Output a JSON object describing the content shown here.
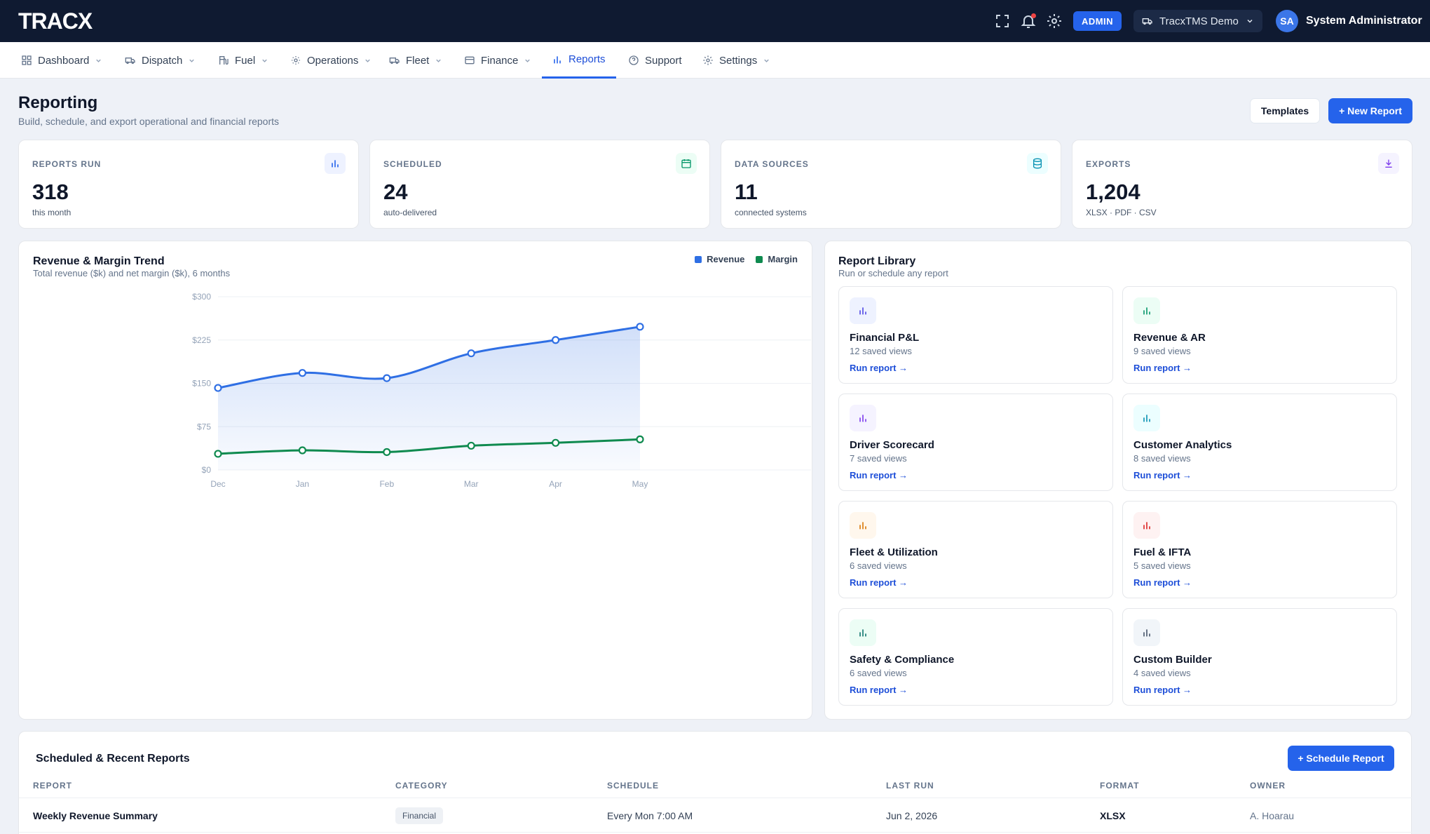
{
  "app": {
    "logo": "TRACX",
    "admin_badge": "ADMIN",
    "tenant": "TracxTMS Demo",
    "user_initials": "SA",
    "user_name": "System Administrator"
  },
  "nav": {
    "items": [
      {
        "label": "Dashboard",
        "icon": "grid-icon",
        "dropdown": true
      },
      {
        "label": "Dispatch",
        "icon": "truck-icon",
        "dropdown": true
      },
      {
        "label": "Fuel",
        "icon": "fuel-pump-icon",
        "dropdown": true
      },
      {
        "label": "Operations",
        "icon": "gear-small-icon",
        "dropdown": true
      },
      {
        "label": "Fleet",
        "icon": "truck-icon",
        "dropdown": true
      },
      {
        "label": "Finance",
        "icon": "credit-card-icon",
        "dropdown": true
      },
      {
        "label": "Reports",
        "icon": "bar-chart-icon",
        "dropdown": false,
        "active": true
      },
      {
        "label": "Support",
        "icon": "help-circle-icon",
        "dropdown": false
      },
      {
        "label": "Settings",
        "icon": "settings-icon",
        "dropdown": true
      }
    ]
  },
  "page": {
    "title": "Reporting",
    "subtitle": "Build, schedule, and export operational and financial reports",
    "templates_label": "Templates",
    "new_report_label": "+ New Report"
  },
  "stats": [
    {
      "label": "REPORTS RUN",
      "value": "318",
      "note": "this month",
      "icon": "bar-chart-icon",
      "color": "#2563eb",
      "bg": "#eef2ff"
    },
    {
      "label": "SCHEDULED",
      "value": "24",
      "note": "auto-delivered",
      "icon": "calendar-icon",
      "color": "#059669",
      "bg": "#ecfdf5"
    },
    {
      "label": "DATA SOURCES",
      "value": "11",
      "note": "connected systems",
      "icon": "database-icon",
      "color": "#0891b2",
      "bg": "#ecfeff"
    },
    {
      "label": "EXPORTS",
      "value": "1,204",
      "note": "XLSX · PDF · CSV",
      "icon": "download-icon",
      "color": "#7c3aed",
      "bg": "#f5f3ff"
    }
  ],
  "chart_panel": {
    "title": "Revenue & Margin Trend",
    "subtitle": "Total revenue ($k) and net margin ($k), 6 months"
  },
  "chart_data": {
    "type": "area",
    "title": "Revenue & Margin Trend",
    "categories": [
      "Dec",
      "Jan",
      "Feb",
      "Mar",
      "Apr",
      "May"
    ],
    "y_ticks": [
      "$0",
      "$75",
      "$150",
      "$225",
      "$300"
    ],
    "ylim": [
      0,
      300
    ],
    "grid": true,
    "legend": "top-right",
    "series": [
      {
        "name": "Revenue",
        "color": "#2f6fe4",
        "values": [
          142,
          168,
          159,
          202,
          225,
          248
        ]
      },
      {
        "name": "Margin",
        "color": "#0f8a4f",
        "values": [
          28,
          34,
          31,
          42,
          47,
          53
        ]
      }
    ]
  },
  "library": {
    "title": "Report Library",
    "subtitle": "Run or schedule any report",
    "run_label": "Run report →",
    "items": [
      {
        "name": "Financial P&L",
        "views": "12 saved views",
        "color": "#4f46e5",
        "bg": "#eef2ff"
      },
      {
        "name": "Revenue & AR",
        "views": "9 saved views",
        "color": "#059669",
        "bg": "#ecfdf5"
      },
      {
        "name": "Driver Scorecard",
        "views": "7 saved views",
        "color": "#7c3aed",
        "bg": "#f5f3ff"
      },
      {
        "name": "Customer Analytics",
        "views": "8 saved views",
        "color": "#0891b2",
        "bg": "#ecfeff"
      },
      {
        "name": "Fleet & Utilization",
        "views": "6 saved views",
        "color": "#d97706",
        "bg": "#fff7ed"
      },
      {
        "name": "Fuel & IFTA",
        "views": "5 saved views",
        "color": "#dc2626",
        "bg": "#fef2f2"
      },
      {
        "name": "Safety & Compliance",
        "views": "6 saved views",
        "color": "#0f766e",
        "bg": "#ecfdf5"
      },
      {
        "name": "Custom Builder",
        "views": "4 saved views",
        "color": "#475569",
        "bg": "#f1f5f9"
      }
    ]
  },
  "table": {
    "title": "Scheduled & Recent Reports",
    "schedule_label": "+ Schedule Report",
    "columns": [
      "REPORT",
      "CATEGORY",
      "SCHEDULE",
      "LAST RUN",
      "FORMAT",
      "OWNER"
    ],
    "rows": [
      {
        "report": "Weekly Revenue Summary",
        "category": "Financial",
        "schedule": "Every Mon 7:00 AM",
        "last_run": "Jun 2, 2026",
        "format": "XLSX",
        "owner": "A. Hoarau"
      }
    ]
  }
}
